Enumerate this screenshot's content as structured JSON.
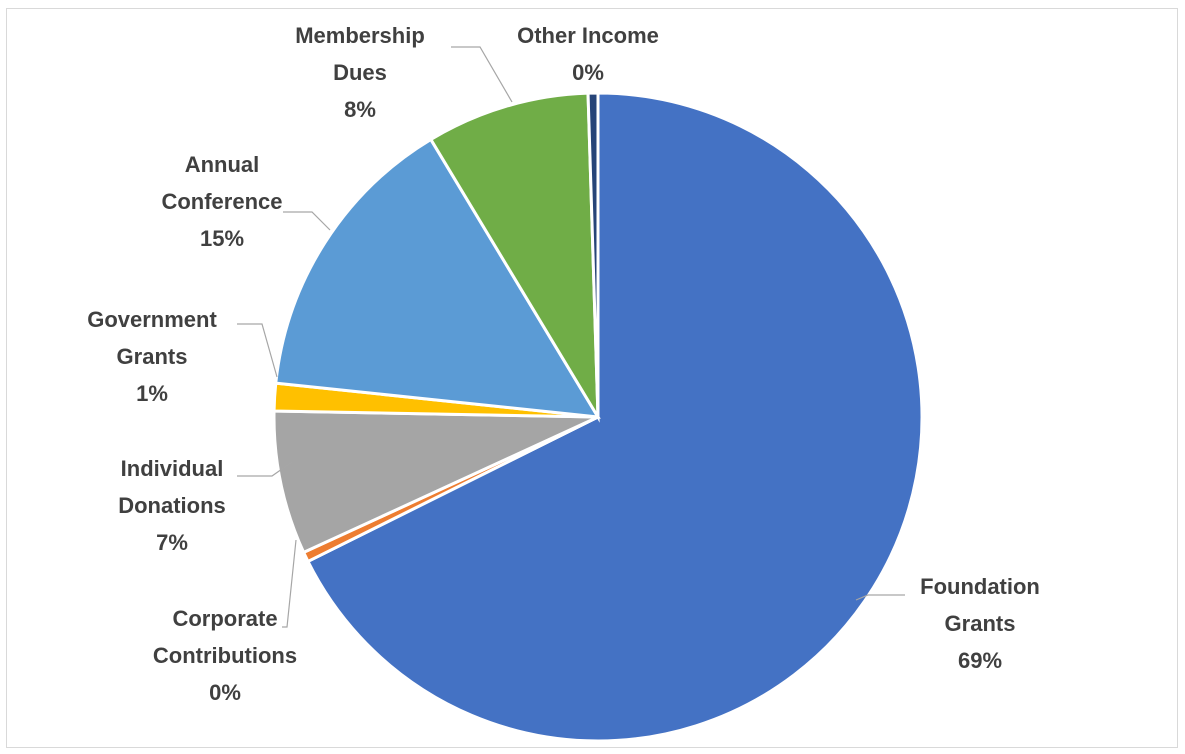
{
  "chart_data": {
    "type": "pie",
    "title": "",
    "slices": [
      {
        "name": "Foundation Grants",
        "lines": [
          "Foundation",
          "Grants"
        ],
        "percent_label": "69%",
        "value": 69.0,
        "color": "#4472C4"
      },
      {
        "name": "Corporate Contributions",
        "lines": [
          "Corporate",
          "Contributions"
        ],
        "percent_label": "0%",
        "value": 0.5,
        "color": "#ED7D31"
      },
      {
        "name": "Individual Donations",
        "lines": [
          "Individual",
          "Donations"
        ],
        "percent_label": "7%",
        "value": 7.3,
        "color": "#A5A5A5"
      },
      {
        "name": "Government Grants",
        "lines": [
          "Government",
          "Grants"
        ],
        "percent_label": "1%",
        "value": 1.4,
        "color": "#FFC000"
      },
      {
        "name": "Annual Conference",
        "lines": [
          "Annual",
          "Conference"
        ],
        "percent_label": "15%",
        "value": 15.0,
        "color": "#5B9BD5"
      },
      {
        "name": "Membership Dues",
        "lines": [
          "Membership",
          "Dues"
        ],
        "percent_label": "8%",
        "value": 8.3,
        "color": "#70AD47"
      },
      {
        "name": "Other Income",
        "lines": [
          "Other Income"
        ],
        "percent_label": "0%",
        "value": 0.5,
        "color": "#264478"
      }
    ],
    "legend": "none",
    "start_angle": "12 o'clock, clockwise"
  }
}
